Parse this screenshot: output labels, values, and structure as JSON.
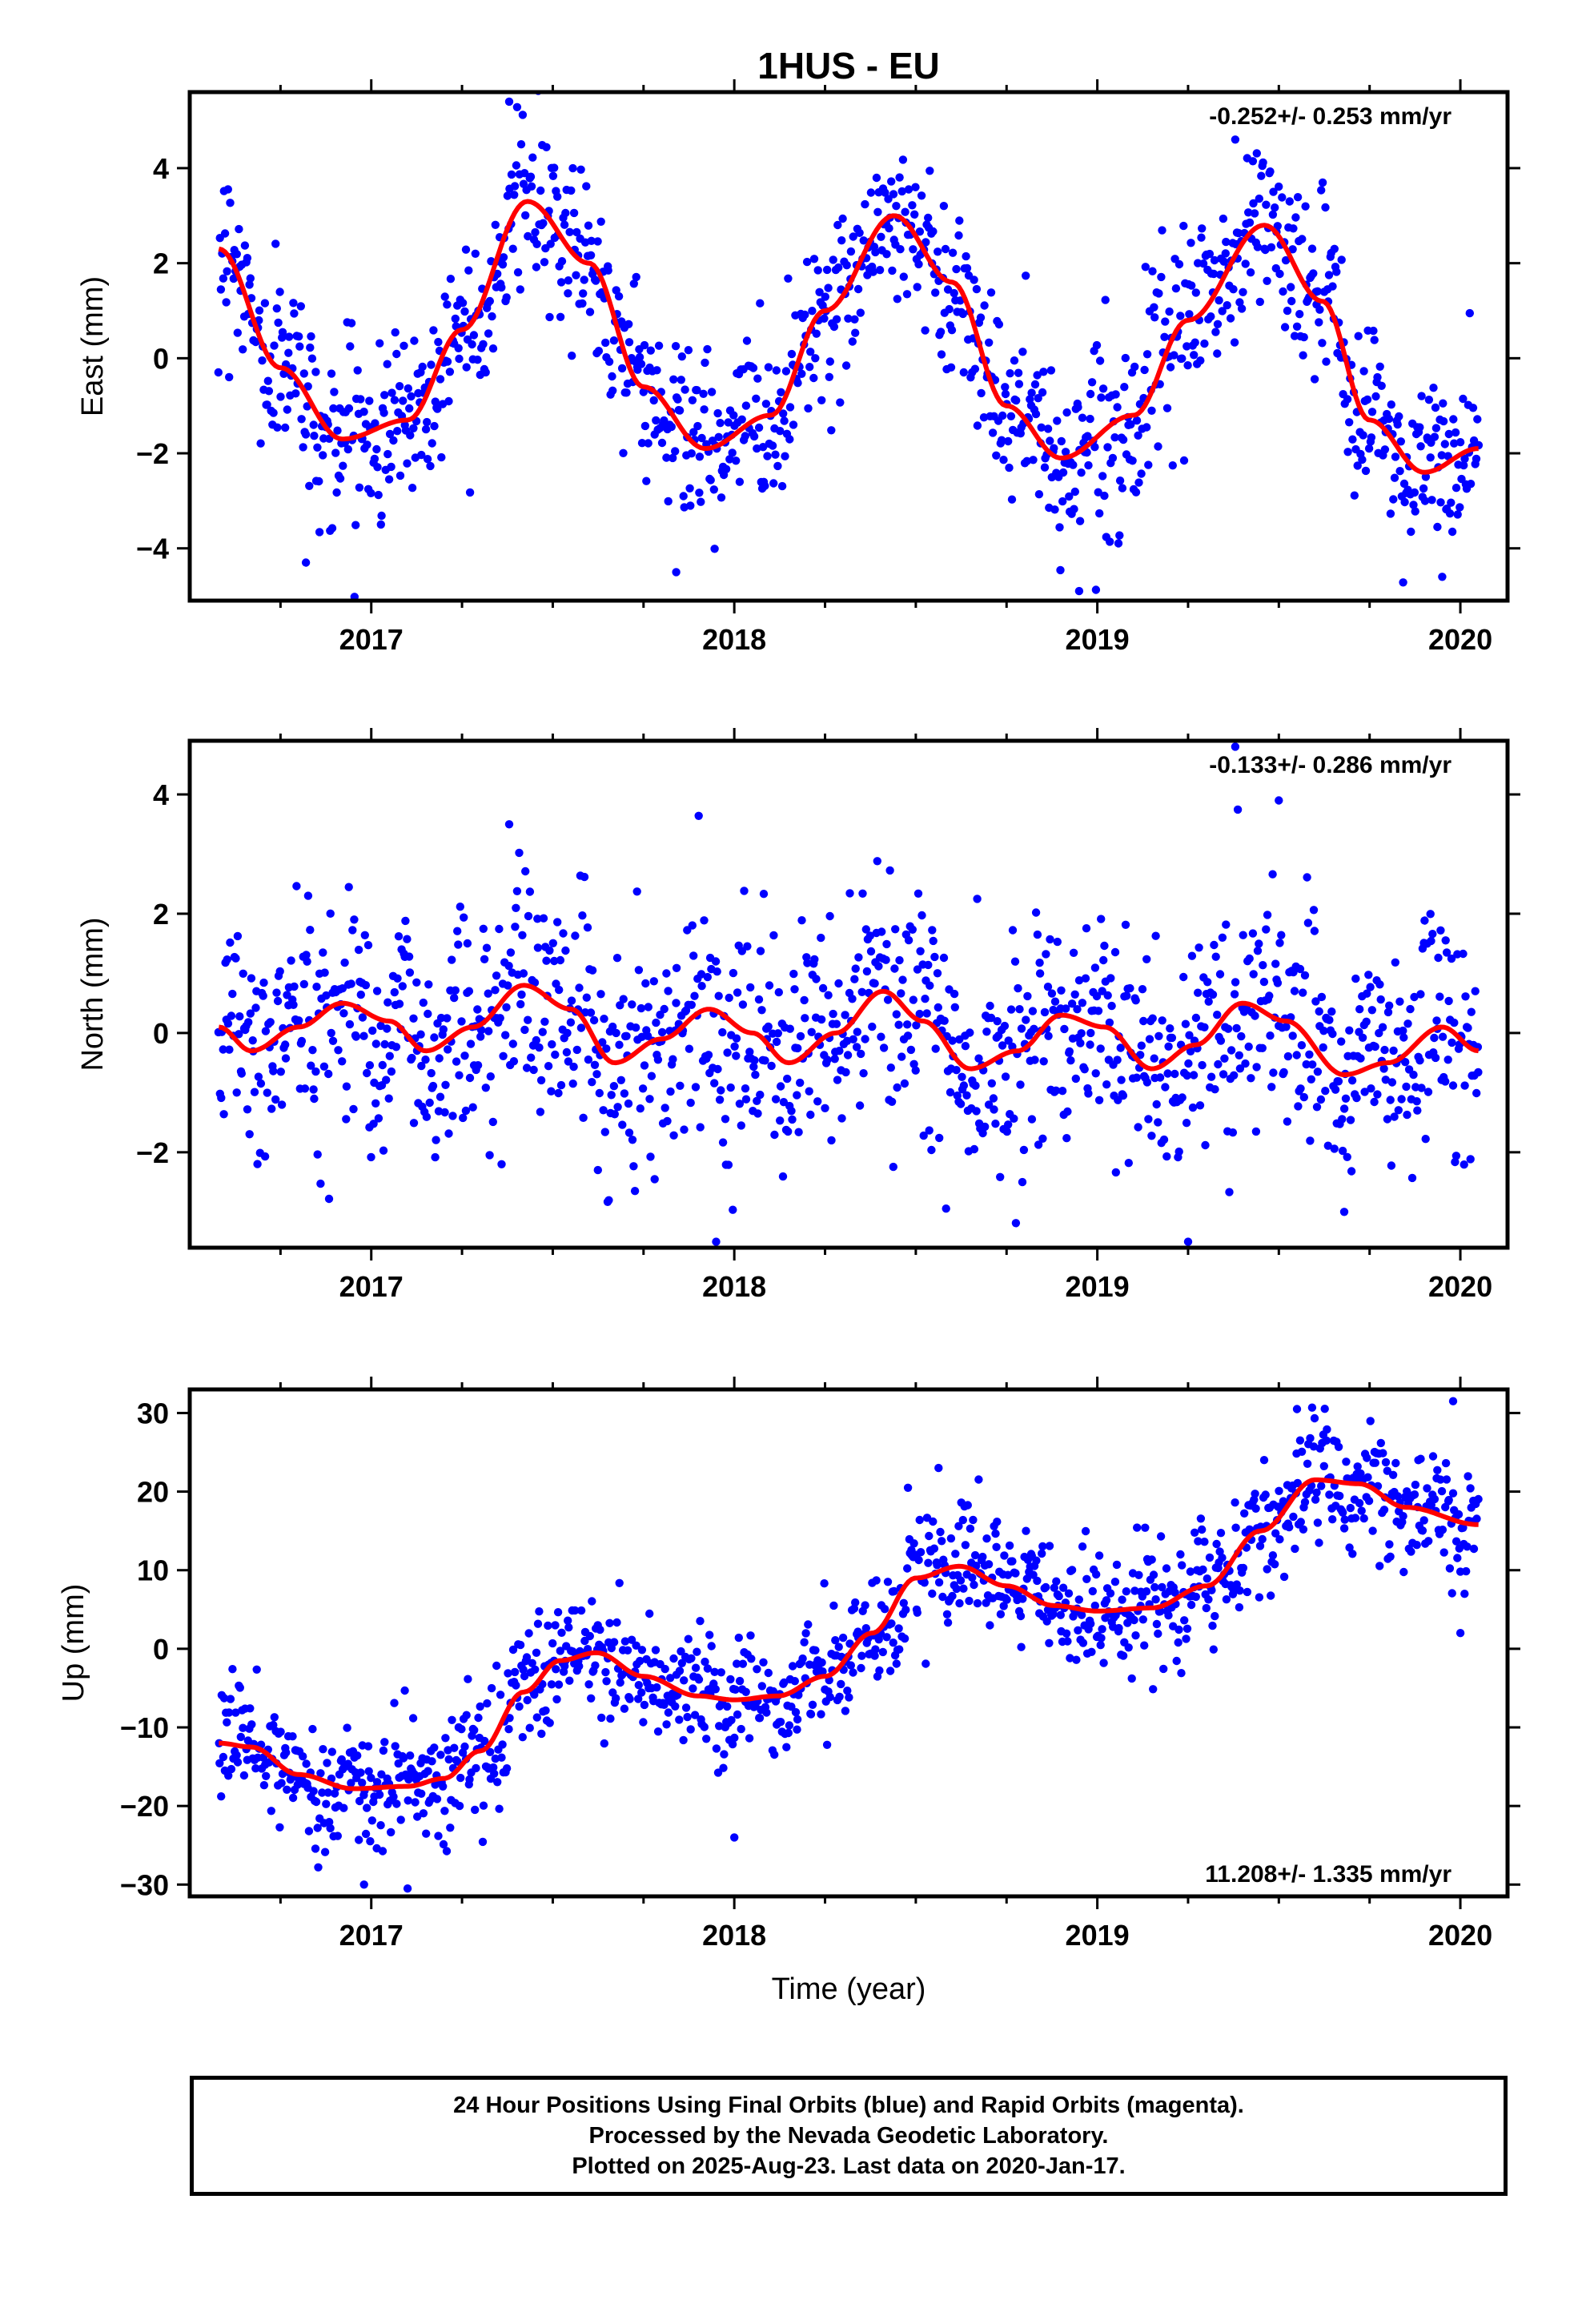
{
  "title": "1HUS - EU",
  "colors": {
    "points": "#0000ff",
    "fit": "#ff0000",
    "frame": "#000000"
  },
  "chart_data": [
    {
      "type": "scatter",
      "name": "east",
      "ylabel": "East (mm)",
      "xlabel": "",
      "xlim": [
        2016.5,
        2020.13
      ],
      "ylim": [
        -5.1,
        5.6
      ],
      "x_ticks": [
        {
          "v": 2017,
          "label": "2017"
        },
        {
          "v": 2018,
          "label": "2018"
        },
        {
          "v": 2019,
          "label": "2019"
        },
        {
          "v": 2020,
          "label": "2020"
        }
      ],
      "y_ticks": [
        {
          "v": -4,
          "label": "−4"
        },
        {
          "v": -2,
          "label": "−2"
        },
        {
          "v": 0,
          "label": "0"
        },
        {
          "v": 2,
          "label": "2"
        },
        {
          "v": 4,
          "label": "4"
        }
      ],
      "rate_text": "-0.252+/- 0.253 mm/yr",
      "rate_position": "top-right",
      "fit_curve": {
        "x": [
          2016.58,
          2016.75,
          2016.92,
          2017.1,
          2017.25,
          2017.43,
          2017.6,
          2017.75,
          2017.92,
          2018.1,
          2018.25,
          2018.44,
          2018.6,
          2018.75,
          2018.9,
          2019.1,
          2019.25,
          2019.46,
          2019.62,
          2019.75,
          2019.9,
          2020.05
        ],
        "y": [
          2.3,
          -0.2,
          -1.7,
          -1.3,
          0.6,
          3.3,
          2.0,
          -0.6,
          -1.9,
          -1.2,
          1.0,
          3.0,
          1.6,
          -1.0,
          -2.1,
          -1.2,
          0.8,
          2.8,
          1.2,
          -1.3,
          -2.4,
          -1.9
        ]
      },
      "scatter_summary": {
        "points": 1200,
        "spread": 0.9,
        "outliers": [
          [
            2016.82,
            -4.3
          ],
          [
            2017.84,
            -4.5
          ],
          [
            2018.95,
            -4.9
          ],
          [
            2019.95,
            -4.6
          ],
          [
            2017.38,
            5.4
          ],
          [
            2019.38,
            4.6
          ]
        ]
      }
    },
    {
      "type": "scatter",
      "name": "north",
      "ylabel": "North (mm)",
      "xlabel": "",
      "xlim": [
        2016.5,
        2020.13
      ],
      "ylim": [
        -3.6,
        4.9
      ],
      "x_ticks": [
        {
          "v": 2017,
          "label": "2017"
        },
        {
          "v": 2018,
          "label": "2018"
        },
        {
          "v": 2019,
          "label": "2019"
        },
        {
          "v": 2020,
          "label": "2020"
        }
      ],
      "y_ticks": [
        {
          "v": -2,
          "label": "−2"
        },
        {
          "v": 0,
          "label": "0"
        },
        {
          "v": 2,
          "label": "2"
        },
        {
          "v": 4,
          "label": "4"
        }
      ],
      "rate_text": "-0.133+/- 0.286 mm/yr",
      "rate_position": "top-right",
      "fit_curve": {
        "x": [
          2016.58,
          2016.67,
          2016.8,
          2016.92,
          2017.05,
          2017.15,
          2017.28,
          2017.42,
          2017.55,
          2017.67,
          2017.8,
          2017.93,
          2018.05,
          2018.15,
          2018.28,
          2018.41,
          2018.52,
          2018.65,
          2018.78,
          2018.9,
          2019.02,
          2019.15,
          2019.27,
          2019.4,
          2019.52,
          2019.68,
          2019.8,
          2019.95,
          2020.05
        ],
        "y": [
          0.1,
          -0.3,
          0.1,
          0.5,
          0.2,
          -0.3,
          0.1,
          0.8,
          0.4,
          -0.5,
          -0.1,
          0.4,
          0.0,
          -0.5,
          0.0,
          0.7,
          0.2,
          -0.6,
          -0.3,
          0.3,
          0.1,
          -0.6,
          -0.2,
          0.5,
          0.2,
          -0.7,
          -0.5,
          0.1,
          -0.3
        ]
      },
      "scatter_summary": {
        "points": 1200,
        "spread": 0.95,
        "outliers": [
          [
            2017.38,
            3.5
          ],
          [
            2017.95,
            -3.5
          ],
          [
            2019.25,
            -3.5
          ],
          [
            2019.5,
            3.9
          ],
          [
            2019.38,
            4.8
          ],
          [
            2019.68,
            -3.0
          ]
        ]
      }
    },
    {
      "type": "scatter",
      "name": "up",
      "ylabel": "Up (mm)",
      "xlabel": "Time (year)",
      "xlim": [
        2016.5,
        2020.13
      ],
      "ylim": [
        -31.5,
        33.0
      ],
      "x_ticks": [
        {
          "v": 2017,
          "label": "2017"
        },
        {
          "v": 2018,
          "label": "2018"
        },
        {
          "v": 2019,
          "label": "2019"
        },
        {
          "v": 2020,
          "label": "2020"
        }
      ],
      "y_ticks": [
        {
          "v": -30,
          "label": "−30"
        },
        {
          "v": -20,
          "label": "−20"
        },
        {
          "v": -10,
          "label": "−10"
        },
        {
          "v": 0,
          "label": "0"
        },
        {
          "v": 10,
          "label": "10"
        },
        {
          "v": 20,
          "label": "20"
        },
        {
          "v": 30,
          "label": "30"
        }
      ],
      "rate_text": "11.208+/- 1.335 mm/yr",
      "rate_position": "bottom-right",
      "fit_curve": {
        "x": [
          2016.58,
          2016.67,
          2016.8,
          2016.95,
          2017.1,
          2017.2,
          2017.3,
          2017.42,
          2017.52,
          2017.62,
          2017.75,
          2017.9,
          2018.0,
          2018.12,
          2018.25,
          2018.38,
          2018.5,
          2018.62,
          2018.75,
          2018.88,
          2019.0,
          2019.15,
          2019.3,
          2019.45,
          2019.6,
          2019.72,
          2019.85,
          2020.05
        ],
        "y": [
          -12.0,
          -12.5,
          -16.0,
          -17.8,
          -17.5,
          -16.5,
          -13.0,
          -5.5,
          -1.5,
          -0.5,
          -3.5,
          -6.0,
          -6.5,
          -6.0,
          -3.5,
          2.0,
          9.0,
          10.5,
          8.0,
          5.5,
          4.8,
          5.2,
          8.0,
          15.0,
          21.5,
          21.0,
          18.0,
          15.8
        ]
      },
      "scatter_summary": {
        "points": 1200,
        "spread": 3.8,
        "outliers": [
          [
            2017.1,
            -30.5
          ],
          [
            2016.98,
            -30.0
          ],
          [
            2019.98,
            31.5
          ],
          [
            2019.55,
            30.5
          ],
          [
            2018.0,
            -24.0
          ],
          [
            2020.0,
            2.0
          ]
        ]
      }
    }
  ],
  "footer": {
    "line1": "24 Hour Positions Using Final Orbits (blue) and Rapid Orbits (magenta).",
    "line2": "Processed by the Nevada Geodetic Laboratory.",
    "line3": "Plotted on 2025-Aug-23. Last data on 2020-Jan-17."
  }
}
